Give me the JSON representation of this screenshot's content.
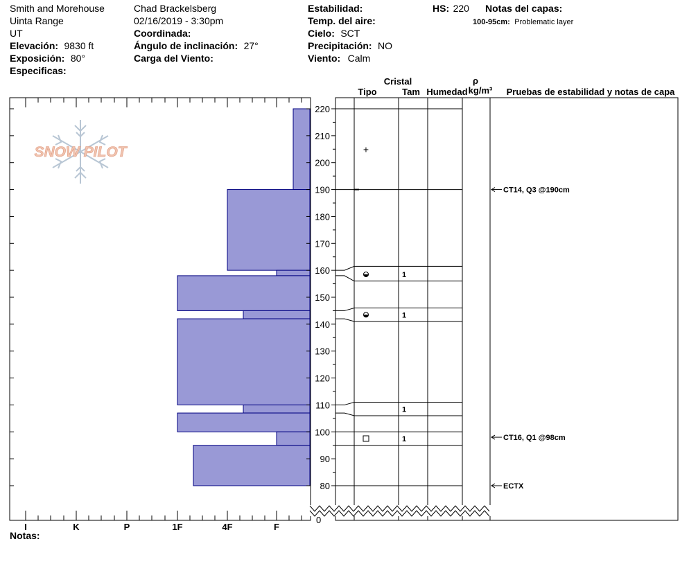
{
  "header": {
    "location": "Smith and Morehouse",
    "range": "Uinta Range",
    "state": "UT",
    "elevation_label": "Elevación:",
    "elevation_value": "9830 ft",
    "aspect_label": "Exposición:",
    "aspect_value": "80°",
    "specifics_label": "Especificas:",
    "observer": "Chad Brackelsberg",
    "datetime": "02/16/2019 - 3:30pm",
    "coord_label": "Coordinada:",
    "slope_label": "Ángulo de inclinación:",
    "slope_value": "27°",
    "wind_load_label": "Carga del Viento:",
    "stability_label": "Estabilidad:",
    "air_temp_label": "Temp. del aire:",
    "sky_label": "Cielo:",
    "sky_value": "SCT",
    "precip_label": "Precipitación:",
    "precip_value": "NO",
    "wind_label": "Viento:",
    "wind_value": "Calm",
    "hs_label": "HS:",
    "hs_value": "220",
    "layer_notes_label": "Notas del capas:",
    "layer_note_range": "100-95cm:",
    "layer_note_text": "Problematic layer"
  },
  "logo_text": "SNOW PILOT",
  "notes_label": "Notas:",
  "columns": {
    "crystal": "Cristal",
    "type": "Tipo",
    "size": "Tam",
    "moisture": "Humedad",
    "rho": "ρ",
    "density_unit": "kg/m³",
    "stability_notes": "Pruebas de estabilidad y notas de capa"
  },
  "colors": {
    "bar_fill": "#9999d6",
    "bar_stroke": "#000080",
    "logo": "#f0c4b0"
  },
  "chart_data": {
    "type": "bar",
    "orientation": "horizontal",
    "y_axis": {
      "label": "",
      "range": [
        80,
        220
      ],
      "ticks": [
        80,
        90,
        100,
        110,
        120,
        130,
        140,
        150,
        160,
        170,
        180,
        190,
        200,
        210,
        220
      ],
      "break_label": "0"
    },
    "x_axis": {
      "label": "",
      "categories": [
        "I",
        "K",
        "P",
        "1F",
        "4F",
        "F"
      ]
    },
    "hardness_layers": [
      {
        "top": 220,
        "bottom": 190,
        "hardness": "F-"
      },
      {
        "top": 190,
        "bottom": 160,
        "hardness": "4F"
      },
      {
        "top": 160,
        "bottom": 158,
        "hardness": "F"
      },
      {
        "top": 158,
        "bottom": 145,
        "hardness": "1F"
      },
      {
        "top": 145,
        "bottom": 142,
        "hardness": "4F-"
      },
      {
        "top": 142,
        "bottom": 110,
        "hardness": "1F"
      },
      {
        "top": 110,
        "bottom": 107,
        "hardness": "4F-"
      },
      {
        "top": 107,
        "bottom": 100,
        "hardness": "1F"
      },
      {
        "top": 100,
        "bottom": 95,
        "hardness": "F"
      },
      {
        "top": 95,
        "bottom": 80,
        "hardness": "1F-"
      }
    ],
    "boundaries": [
      220,
      190,
      160,
      158,
      145,
      142,
      110,
      107,
      100,
      95,
      80
    ],
    "grain_rows": [
      {
        "top": 220,
        "bottom": 190,
        "type": "+",
        "size": ""
      },
      {
        "top": 161,
        "bottom": 156,
        "type": "◒",
        "size": "1"
      },
      {
        "top": 146,
        "bottom": 141,
        "type": "◒",
        "size": "1"
      },
      {
        "top": 111,
        "bottom": 106,
        "type": "",
        "size": "1"
      },
      {
        "top": 100,
        "bottom": 95,
        "type": "□",
        "size": "1"
      }
    ],
    "stability_tests": [
      {
        "depth": 190,
        "label": "CT14, Q3 @190cm"
      },
      {
        "depth": 98,
        "label": "CT16, Q1 @98cm"
      },
      {
        "depth": 80,
        "label": "ECTX"
      }
    ]
  }
}
